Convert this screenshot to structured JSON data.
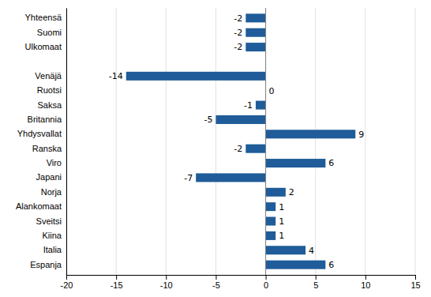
{
  "chart_data": {
    "type": "bar",
    "orientation": "horizontal",
    "categories": [
      "Yhteensä",
      "Suomi",
      "Ulkomaat",
      null,
      "Venäjä",
      "Ruotsi",
      "Saksa",
      "Britannia",
      "Yhdysvallat",
      "Ranska",
      "Viro",
      "Japani",
      "Norja",
      "Alankomaat",
      "Sveitsi",
      "Kiina",
      "Italia",
      "Espanja"
    ],
    "values": [
      -2,
      -2,
      -2,
      null,
      -14,
      0,
      -1,
      -5,
      9,
      -2,
      6,
      -7,
      2,
      1,
      1,
      1,
      4,
      6
    ],
    "color": "#1F5C99",
    "xlim": [
      -20,
      15
    ],
    "xticks": [
      -20,
      -15,
      -10,
      -5,
      0,
      5,
      10,
      15
    ],
    "grid": true,
    "data_labels": true
  }
}
